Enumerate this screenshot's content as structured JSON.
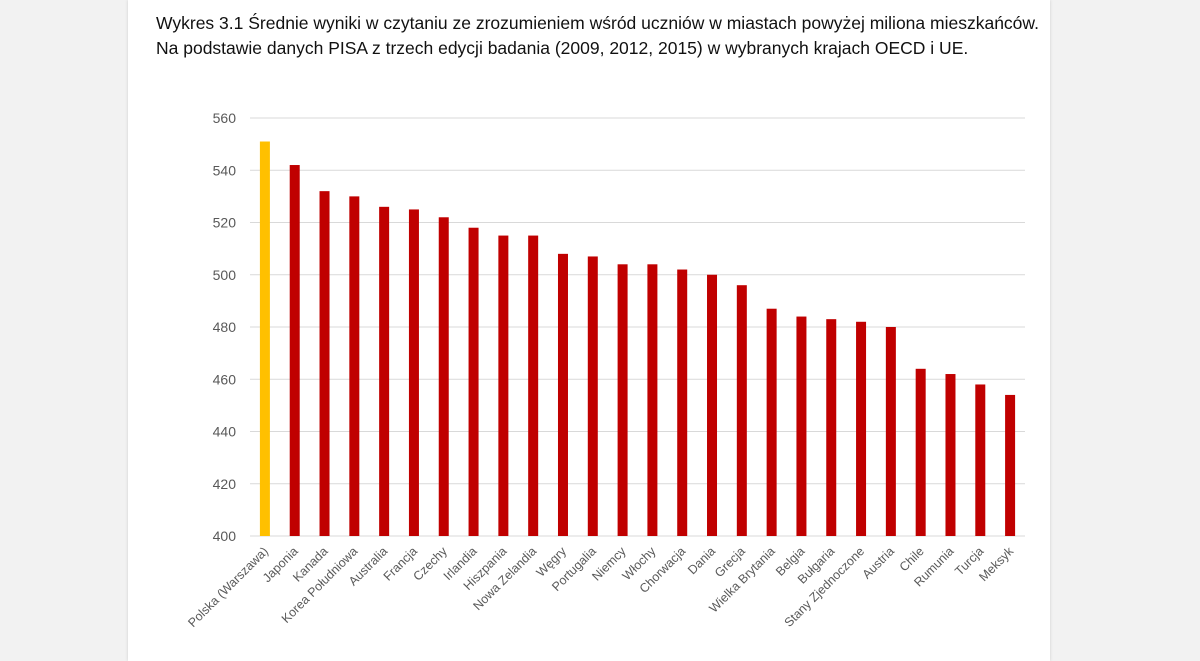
{
  "chart_data": {
    "type": "bar",
    "title": "Wykres 3.1 Średnie wyniki w czytaniu ze zrozumieniem wśród uczniów w miastach powyżej miliona mieszkańców. Na podstawie danych PISA z trzech edycji badania (2009, 2012, 2015) w wybranych krajach OECD i UE.",
    "xlabel": "",
    "ylabel": "",
    "ylim": [
      400,
      560
    ],
    "yticks": [
      400,
      420,
      440,
      460,
      480,
      500,
      520,
      540,
      560
    ],
    "grid": true,
    "categories": [
      "Polska (Warszawa)",
      "Japonia",
      "Kanada",
      "Korea Południowa",
      "Australia",
      "Francja",
      "Czechy",
      "Irlandia",
      "Hiszpania",
      "Nowa Zelandia",
      "Węgry",
      "Portugalia",
      "Niemcy",
      "Włochy",
      "Chorwacja",
      "Dania",
      "Grecja",
      "Wielka Brytania",
      "Belgia",
      "Bułgaria",
      "Stany Zjednoczone",
      "Austria",
      "Chile",
      "Rumunia",
      "Turcja",
      "Meksyk"
    ],
    "values": [
      551,
      542,
      532,
      530,
      526,
      525,
      522,
      518,
      515,
      515,
      508,
      507,
      504,
      504,
      502,
      500,
      496,
      487,
      484,
      483,
      482,
      480,
      464,
      462,
      458,
      454
    ],
    "colors": {
      "highlight": "#ffc000",
      "default": "#c00000",
      "gridline": "#d9d9d9",
      "text": "#595959"
    },
    "highlight_index": 0
  }
}
